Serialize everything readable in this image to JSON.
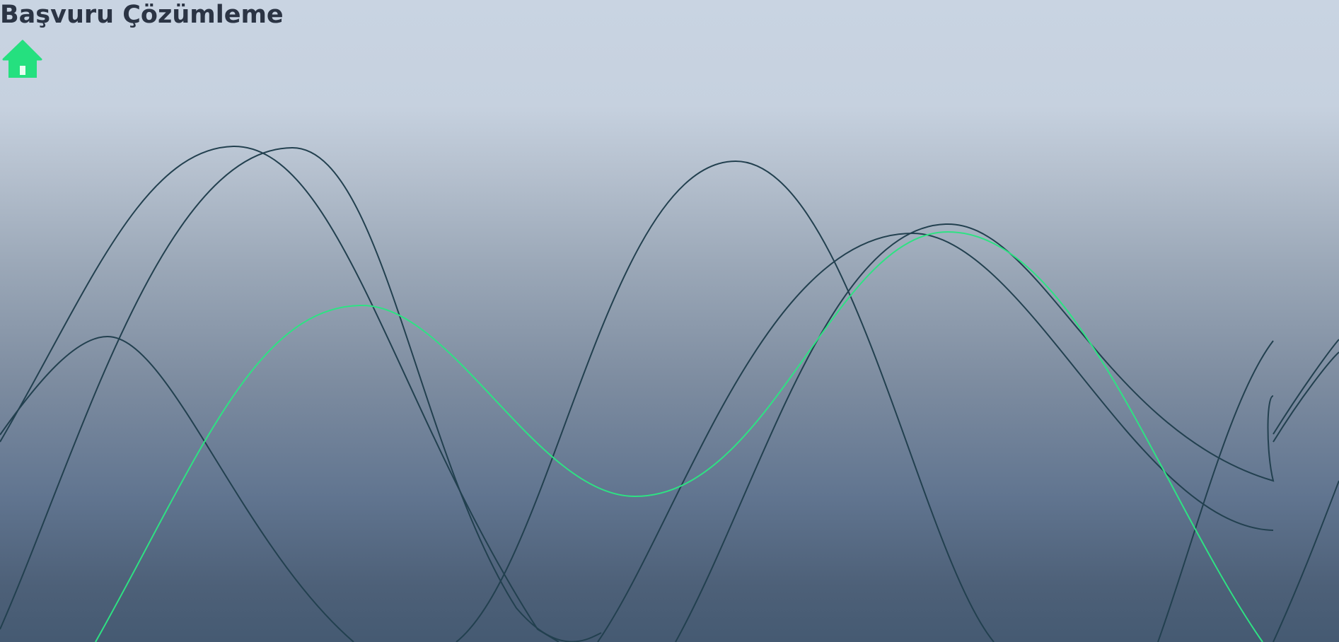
{
  "page": {
    "title": "Başvuru Çözümleme"
  },
  "home": {
    "icon": "home-icon",
    "color": "#25e07f"
  },
  "colors": {
    "wave_dark": "#22404f",
    "wave_accent": "#2ee283",
    "title": "#2b3444"
  }
}
